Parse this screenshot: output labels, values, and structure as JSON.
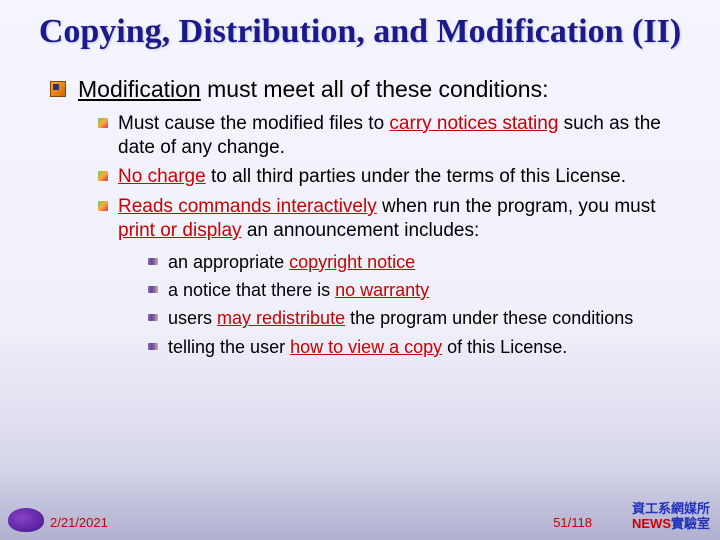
{
  "title": "Copying, Distribution, and Modification (II)",
  "l1_pre": "Modification",
  "l1_post": " must meet all of these conditions:",
  "l2": {
    "a": {
      "pre": "Must cause the modified files to ",
      "hl": "carry notices stating",
      "post": " such as the date of any change."
    },
    "b": {
      "hl": "No charge",
      "post": " to all third parties under the terms of this License."
    },
    "c": {
      "hl": "Reads commands interactively",
      "mid": " when run the program, you must ",
      "hl2": "print or display",
      "post": " an announcement includes:"
    }
  },
  "l3": {
    "a": {
      "pre": "an appropriate ",
      "hl": "copyright notice"
    },
    "b": {
      "pre": "a notice that there is ",
      "hl": "no warranty"
    },
    "c": {
      "pre": "users ",
      "hl": "may redistribute",
      "post": " the program under these conditions"
    },
    "d": {
      "pre": "telling the user ",
      "hl": "how to view a copy",
      "post": " of this License."
    }
  },
  "footer": {
    "date": "2/21/2021",
    "page": "51/118",
    "lab_line1": "資工系網媒所",
    "lab_news": "NEWS",
    "lab_rest": "實驗室"
  }
}
